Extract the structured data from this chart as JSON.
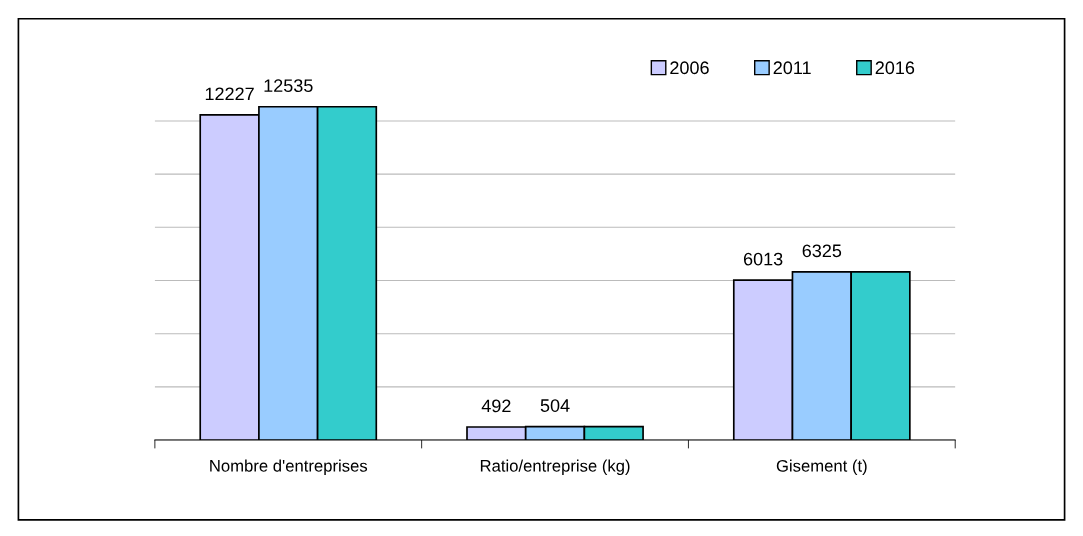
{
  "chart_data": {
    "type": "bar",
    "categories": [
      "Nombre d'entreprises",
      "Ratio/entreprise (kg)",
      "Gisement (t)"
    ],
    "series": [
      {
        "name": "2006",
        "color": "#ccccff",
        "values": [
          12227,
          492,
          6013
        ],
        "value_labels": [
          "12227",
          "492",
          "6013"
        ]
      },
      {
        "name": "2011",
        "color": "#99ccff",
        "values": [
          12535,
          504,
          6325
        ],
        "value_labels": [
          "12535",
          "504",
          "6325"
        ]
      },
      {
        "name": "2016",
        "color": "#33cccc",
        "values": [
          12535,
          504,
          6325
        ],
        "value_labels": [
          null,
          null,
          null
        ]
      }
    ],
    "yticks": [
      {
        "value": 0,
        "label": null
      },
      {
        "value": 2000,
        "label": null
      },
      {
        "value": 4000,
        "label": null
      },
      {
        "value": 6000,
        "label": null
      },
      {
        "value": 8000,
        "label": null
      },
      {
        "value": 10000,
        "label": null
      },
      {
        "value": 12000,
        "label": null
      }
    ],
    "tick_labels": "x",
    "grid": "y",
    "legend": "top right"
  }
}
